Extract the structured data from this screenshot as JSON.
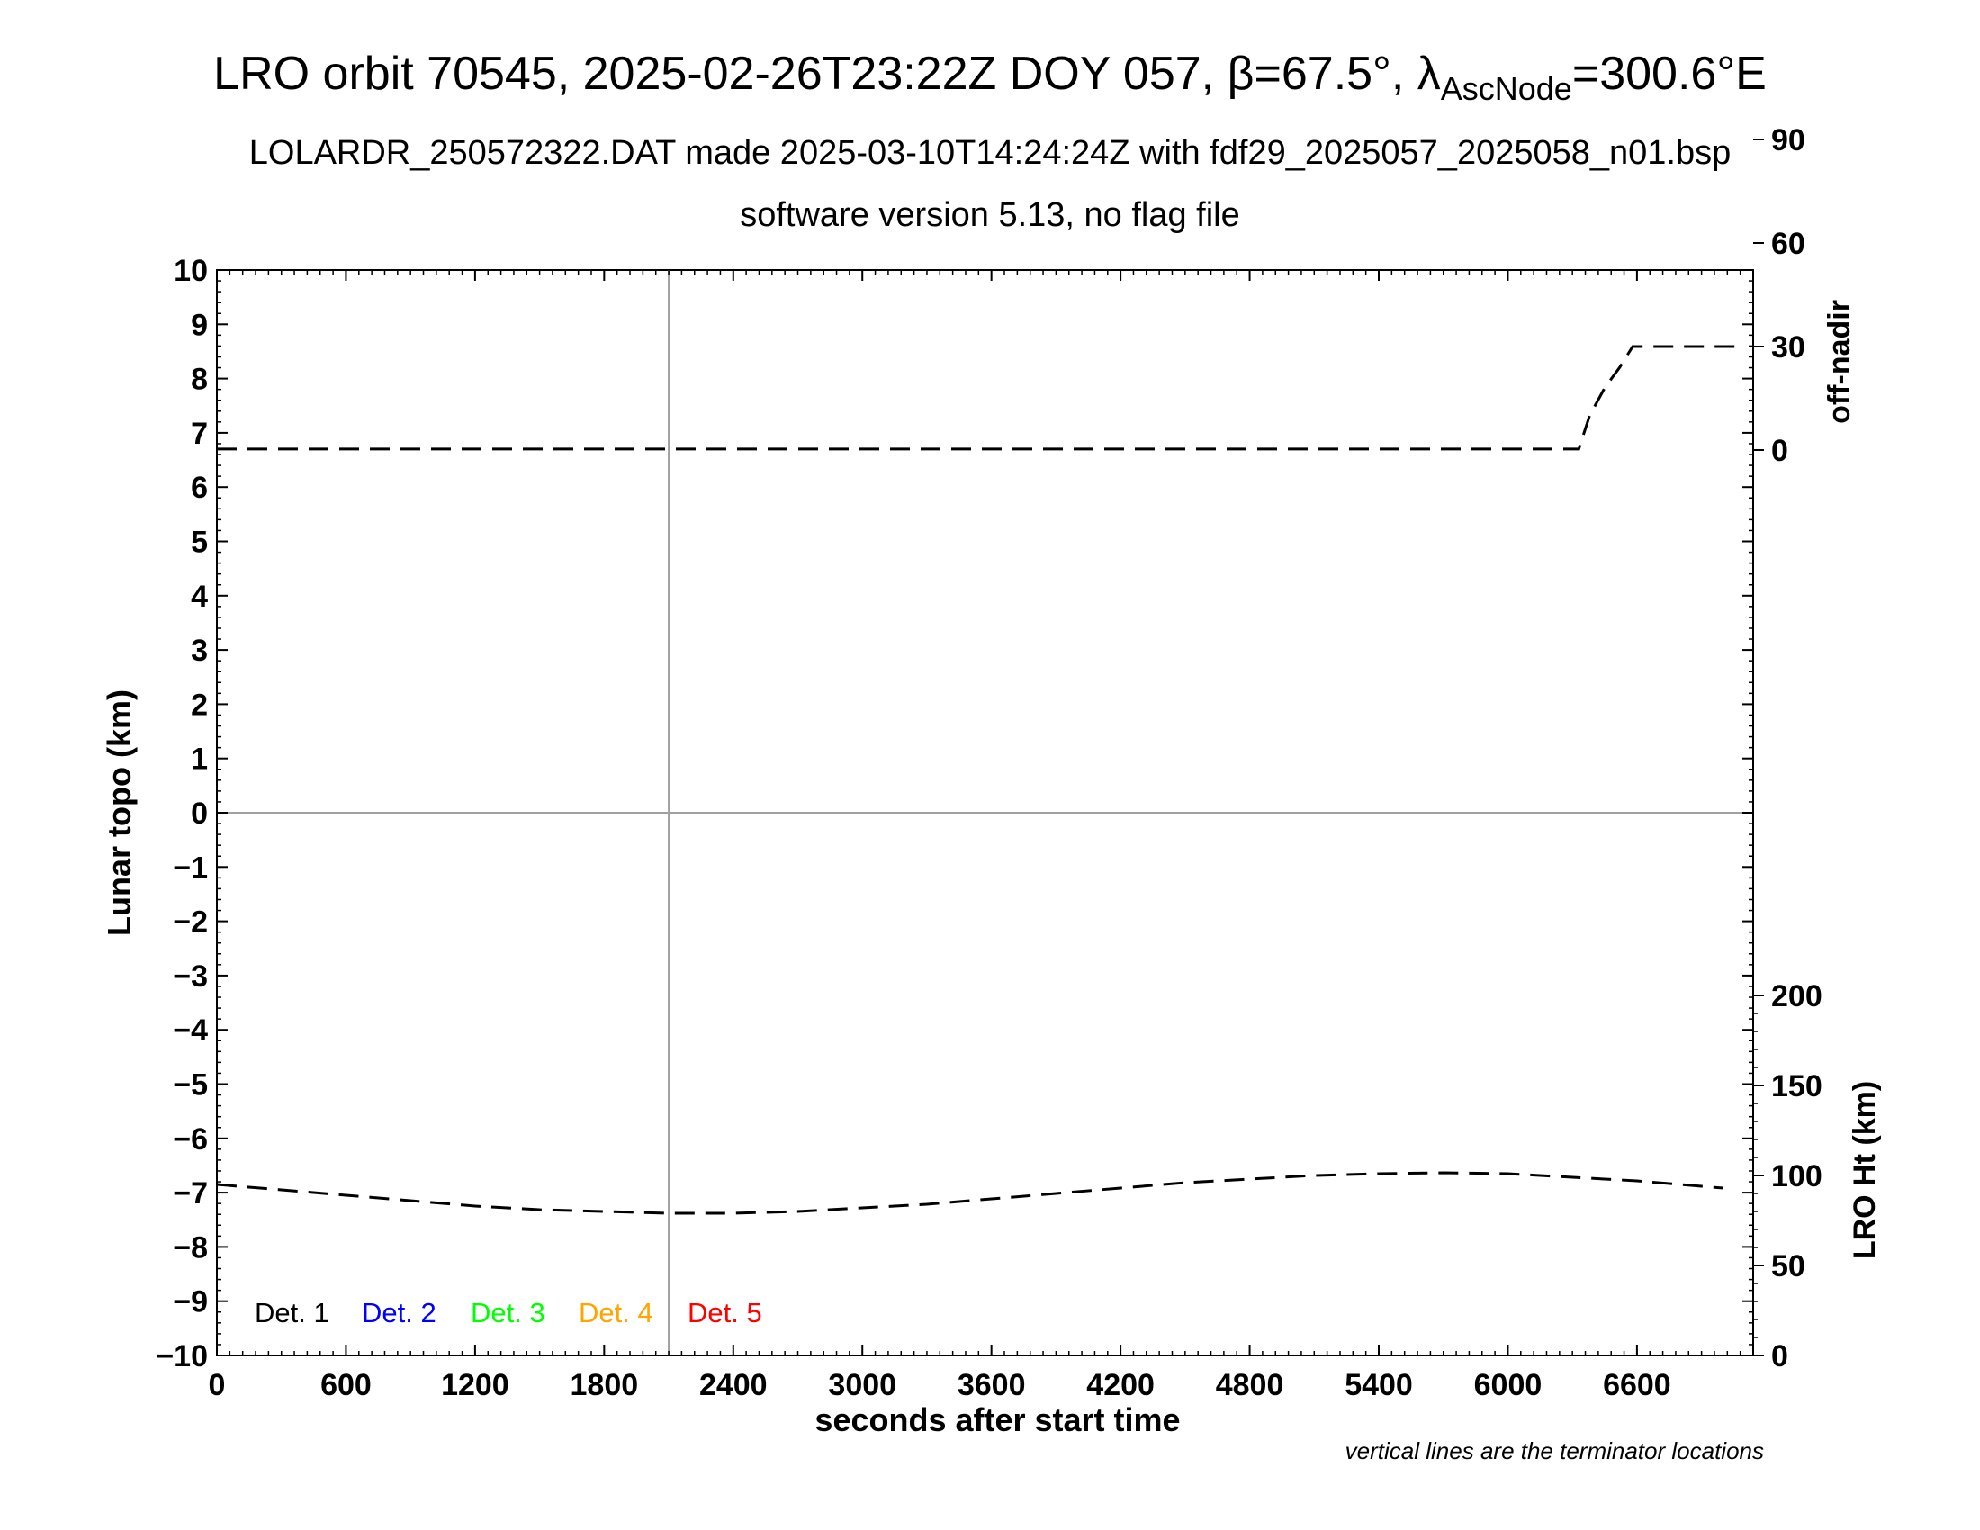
{
  "header": {
    "title_prefix": "LRO orbit 70545, 2025-02-26T23:22Z DOY 057, β=67.5°, λ",
    "title_sub": "AscNode",
    "title_suffix": "=300.6°E",
    "subtitle1": "LOLARDR_250572322.DAT made 2025-03-10T14:24:24Z with fdf29_2025057_2025058_n01.bsp",
    "subtitle2": "software version 5.13, no flag file"
  },
  "footnote": "vertical lines are the terminator locations",
  "chart_data": {
    "type": "line",
    "xlabel": "seconds after start time",
    "ylabel": "Lunar topo (km)",
    "xlim": [
      0,
      7140
    ],
    "ylim": [
      -10,
      10
    ],
    "x_ticks": [
      0,
      600,
      1200,
      1800,
      2400,
      3000,
      3600,
      4200,
      4800,
      5400,
      6000,
      6600
    ],
    "y_ticks": [
      10,
      9,
      8,
      7,
      6,
      5,
      4,
      3,
      2,
      1,
      0,
      -1,
      -2,
      -3,
      -4,
      -5,
      -6,
      -7,
      -8,
      -9,
      -10
    ],
    "y_tick_labels": [
      "10",
      "9",
      "8",
      "7",
      "6",
      "5",
      "4",
      "3",
      "2",
      "1",
      "0",
      "−1",
      "−2",
      "−3",
      "−4",
      "−5",
      "−6",
      "−7",
      "−8",
      "−9",
      "−10"
    ],
    "right_axis_top": {
      "label": "off-nadir",
      "ticks": [
        0,
        30,
        60,
        90
      ],
      "series": {
        "style": "dashed",
        "x": [
          0,
          300,
          600,
          900,
          1200,
          1500,
          1800,
          2100,
          2400,
          2700,
          3000,
          3300,
          3600,
          3900,
          4200,
          4500,
          4800,
          5100,
          5400,
          5700,
          6000,
          6300,
          6330,
          6380,
          6450,
          6520,
          6580,
          6700,
          7000,
          7070
        ],
        "y": [
          0.3,
          0.3,
          0.3,
          0.3,
          0.3,
          0.3,
          0.3,
          0.3,
          0.3,
          0.3,
          0.3,
          0.3,
          0.3,
          0.3,
          0.3,
          0.3,
          0.3,
          0.3,
          0.3,
          0.3,
          0.3,
          0.3,
          0.3,
          10,
          18,
          24,
          30,
          30,
          30,
          30
        ]
      }
    },
    "right_axis_bottom": {
      "label": "LRO Ht (km)",
      "ticks": [
        0,
        50,
        100,
        150,
        200
      ],
      "series": {
        "style": "dashed",
        "x": [
          0,
          300,
          600,
          900,
          1200,
          1500,
          1800,
          2100,
          2400,
          2700,
          3000,
          3300,
          3600,
          3900,
          4200,
          4500,
          4800,
          5100,
          5400,
          5700,
          6000,
          6300,
          6600,
          6900,
          7000
        ],
        "y": [
          95,
          92,
          89,
          86,
          83,
          81,
          80,
          79,
          79,
          80,
          82,
          84,
          87,
          90,
          93,
          96,
          98,
          100,
          101,
          101.5,
          101,
          99,
          97,
          94,
          93
        ]
      }
    },
    "terminator_lines_x": [
      2100
    ],
    "grid": false,
    "legend": {
      "placement": "bottom-left",
      "entries": [
        {
          "label": "Det. 1",
          "color": "#000000"
        },
        {
          "label": "Det. 2",
          "color": "#0000ff"
        },
        {
          "label": "Det. 3",
          "color": "#00ff00"
        },
        {
          "label": "Det. 4",
          "color": "#ffa500"
        },
        {
          "label": "Det. 5",
          "color": "#ff0000"
        }
      ]
    }
  }
}
